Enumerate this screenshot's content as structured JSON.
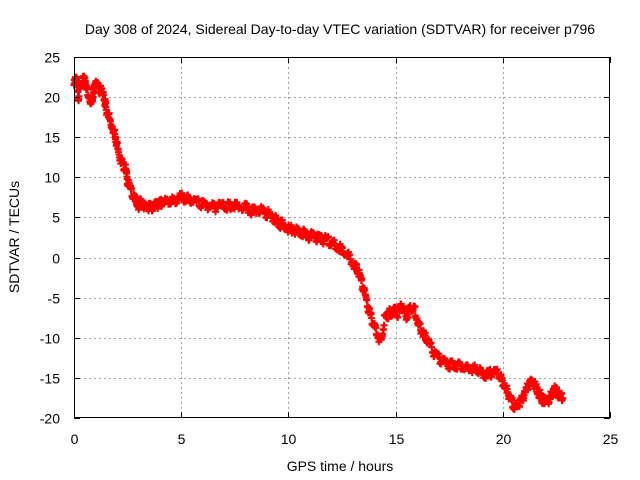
{
  "chart_data": {
    "type": "scatter",
    "title": "Day 308 of 2024, Sidereal Day-to-day VTEC variation (SDTVAR) for receiver p796",
    "xlabel": "GPS time / hours",
    "ylabel": "SDTVAR / TECUs",
    "xlim": [
      0,
      25
    ],
    "ylim": [
      -20,
      25
    ],
    "xticks": [
      0,
      5,
      10,
      15,
      20,
      25
    ],
    "yticks": [
      -20,
      -15,
      -10,
      -5,
      0,
      5,
      10,
      15,
      20,
      25
    ],
    "grid": true,
    "marker": "+",
    "series": [
      {
        "name": "SDTVAR",
        "color": "#ff0000",
        "x": [
          0.0,
          0.1,
          0.2,
          0.3,
          0.5,
          0.6,
          0.8,
          0.9,
          1.0,
          1.2,
          1.4,
          1.5,
          1.7,
          1.9,
          2.0,
          2.2,
          2.4,
          2.5,
          2.7,
          2.9,
          3.0,
          3.1,
          3.3,
          3.5,
          3.7,
          3.9,
          4.1,
          4.4,
          4.7,
          5.0,
          5.3,
          5.6,
          6.0,
          6.3,
          6.6,
          7.0,
          7.3,
          7.6,
          8.0,
          8.3,
          8.7,
          9.0,
          9.3,
          9.5,
          9.8,
          10.1,
          10.4,
          10.7,
          11.0,
          11.3,
          11.6,
          11.9,
          12.2,
          12.5,
          12.8,
          13.1,
          13.3,
          13.5,
          13.7,
          13.9,
          14.1,
          14.3,
          14.5,
          14.7,
          14.9,
          15.1,
          15.3,
          15.5,
          15.7,
          15.9,
          16.1,
          16.3,
          16.5,
          16.8,
          17.1,
          17.4,
          17.7,
          18.0,
          18.3,
          18.6,
          18.9,
          19.2,
          19.5,
          19.8,
          20.0,
          20.2,
          20.4,
          20.6,
          20.8,
          21.0,
          21.2,
          21.4,
          21.6,
          21.8,
          22.0,
          22.2,
          22.4,
          22.6,
          22.8
        ],
        "y": [
          21.5,
          22.5,
          20.0,
          21.5,
          22.5,
          21.0,
          19.5,
          20.5,
          21.5,
          21.0,
          20.0,
          18.5,
          17.0,
          15.5,
          14.0,
          12.0,
          11.0,
          9.5,
          8.0,
          7.0,
          6.5,
          7.0,
          6.5,
          6.2,
          6.3,
          6.5,
          6.8,
          7.0,
          7.2,
          7.5,
          7.5,
          7.0,
          6.6,
          6.5,
          6.3,
          6.5,
          6.3,
          6.4,
          6.2,
          5.7,
          5.9,
          5.5,
          5.0,
          4.3,
          4.0,
          3.5,
          3.3,
          3.0,
          2.7,
          2.5,
          2.3,
          2.0,
          1.5,
          1.0,
          0.2,
          -1.0,
          -2.0,
          -4.0,
          -6.0,
          -8.0,
          -9.0,
          -10.5,
          -7.5,
          -7.0,
          -6.5,
          -7.0,
          -6.0,
          -7.5,
          -6.0,
          -6.5,
          -8.5,
          -9.5,
          -10.5,
          -12.0,
          -12.8,
          -13.2,
          -13.5,
          -13.3,
          -13.6,
          -13.8,
          -14.2,
          -14.8,
          -14.3,
          -14.5,
          -15.5,
          -16.5,
          -18.0,
          -18.5,
          -18.2,
          -17.0,
          -16.0,
          -15.5,
          -16.5,
          -17.5,
          -18.0,
          -17.5,
          -16.5,
          -17.0,
          -17.5
        ]
      }
    ]
  }
}
